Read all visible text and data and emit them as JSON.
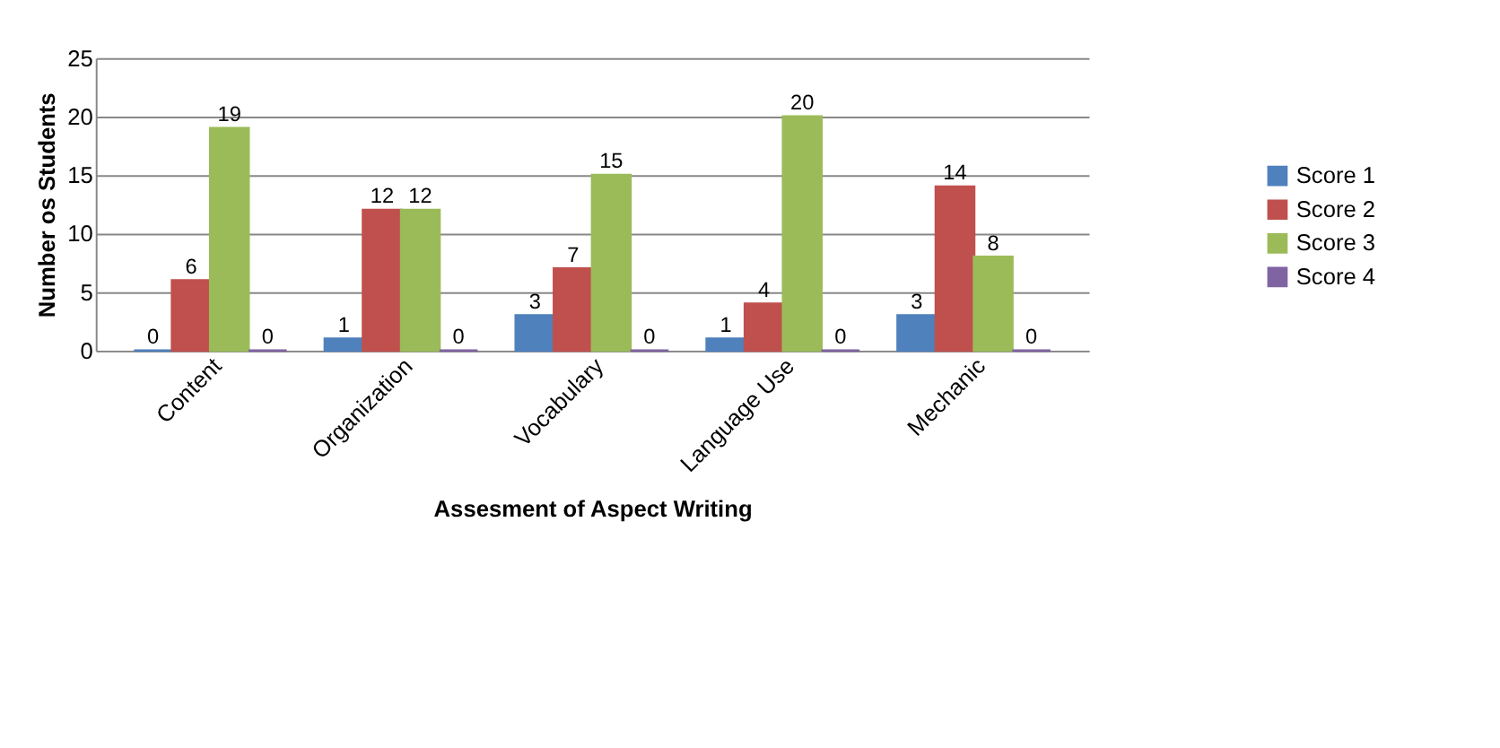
{
  "chart_data": {
    "type": "bar",
    "xlabel": "Assesment of Aspect Writing",
    "ylabel": "Number os Students",
    "categories": [
      "Content",
      "Organization",
      "Vocabulary",
      "Language Use",
      "Mechanic"
    ],
    "series": [
      {
        "name": "Score 1",
        "color": "#4f81bd",
        "values": [
          0,
          1,
          3,
          1,
          3
        ]
      },
      {
        "name": "Score 2",
        "color": "#c0504d",
        "values": [
          6,
          12,
          7,
          4,
          14
        ]
      },
      {
        "name": "Score 3",
        "color": "#9bbb59",
        "values": [
          19,
          12,
          15,
          20,
          8
        ]
      },
      {
        "name": "Score 4",
        "color": "#8064a2",
        "values": [
          0,
          0,
          0,
          0,
          0
        ]
      }
    ],
    "ylim": [
      0,
      25
    ],
    "yticks": [
      0,
      5,
      10,
      15,
      20,
      25
    ],
    "grid": "y",
    "legend": "right",
    "data_labels": true
  }
}
